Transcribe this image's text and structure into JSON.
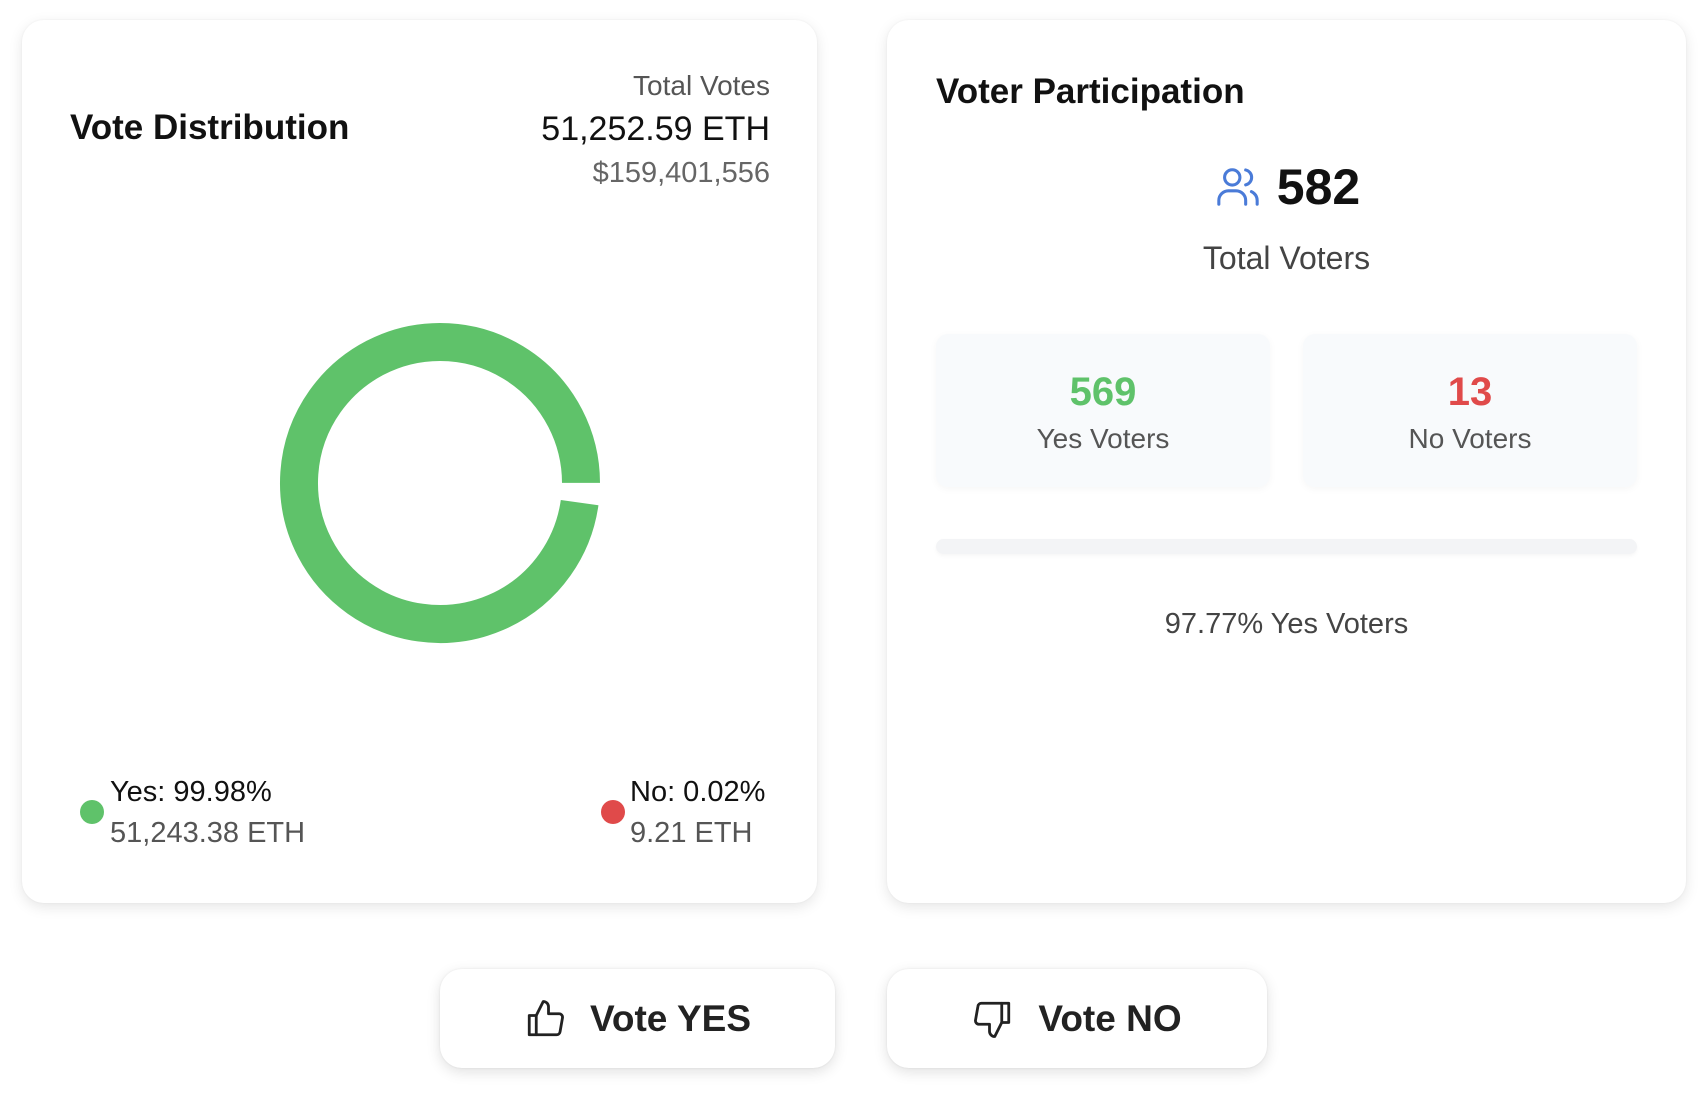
{
  "vote_distribution": {
    "title": "Vote Distribution",
    "total_label": "Total Votes",
    "total_eth": "51,252.59 ETH",
    "total_usd": "$159,401,556",
    "yes": {
      "label": "Yes: 99.98%",
      "amount": "51,243.38 ETH",
      "color": "#5fc26a"
    },
    "no": {
      "label": "No: 0.02%",
      "amount": "9.21 ETH",
      "color": "#e04a4a"
    }
  },
  "chart_data": {
    "type": "pie",
    "variant": "donut",
    "categories": [
      "Yes",
      "No"
    ],
    "values": [
      51243.38,
      9.21
    ],
    "percent": [
      99.98,
      0.02
    ]
  },
  "voter_participation": {
    "title": "Voter Participation",
    "icon": "users-icon",
    "total": "582",
    "total_label": "Total Voters",
    "yes_count": "569",
    "yes_label": "Yes Voters",
    "no_count": "13",
    "no_label": "No Voters",
    "yes_percent_text": "97.77% Yes Voters"
  },
  "actions": {
    "yes_label": "Vote YES",
    "no_label": "Vote NO"
  }
}
